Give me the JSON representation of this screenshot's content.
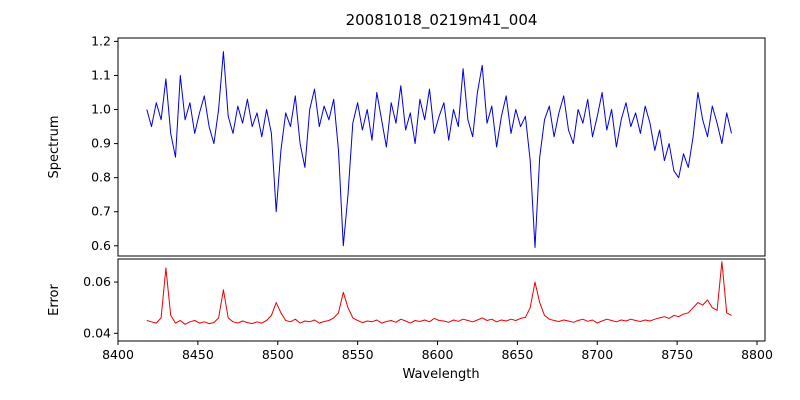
{
  "figure": {
    "background": "#ffffff"
  },
  "chart_data": {
    "type": "line",
    "title": "20081018_0219m41_004",
    "xlabel": "Wavelength",
    "xlim": [
      8400,
      8805
    ],
    "xticks": {
      "values": [
        8400,
        8450,
        8500,
        8550,
        8600,
        8650,
        8700,
        8750,
        8800
      ],
      "labels": [
        "8400",
        "8450",
        "8500",
        "8550",
        "8600",
        "8650",
        "8700",
        "8750",
        "8800"
      ]
    },
    "x": [
      8418,
      8421,
      8424,
      8427,
      8430,
      8433,
      8436,
      8439,
      8442,
      8445,
      8448,
      8451,
      8454,
      8457,
      8460,
      8463,
      8466,
      8469,
      8472,
      8475,
      8478,
      8481,
      8484,
      8487,
      8490,
      8493,
      8496,
      8499,
      8502,
      8505,
      8508,
      8511,
      8514,
      8517,
      8520,
      8523,
      8526,
      8529,
      8532,
      8535,
      8538,
      8541,
      8544,
      8547,
      8550,
      8553,
      8556,
      8559,
      8562,
      8565,
      8568,
      8571,
      8574,
      8577,
      8580,
      8583,
      8586,
      8589,
      8592,
      8595,
      8598,
      8601,
      8604,
      8607,
      8610,
      8613,
      8616,
      8619,
      8622,
      8625,
      8628,
      8631,
      8634,
      8637,
      8640,
      8643,
      8646,
      8649,
      8652,
      8655,
      8658,
      8661,
      8664,
      8667,
      8670,
      8673,
      8676,
      8679,
      8682,
      8685,
      8688,
      8691,
      8694,
      8697,
      8700,
      8703,
      8706,
      8709,
      8712,
      8715,
      8718,
      8721,
      8724,
      8727,
      8730,
      8733,
      8736,
      8739,
      8742,
      8745,
      8748,
      8751,
      8754,
      8757,
      8760,
      8763,
      8766,
      8769,
      8772,
      8775,
      8778,
      8781,
      8784
    ],
    "panels": [
      {
        "name": "spectrum",
        "ylabel": "Spectrum",
        "color": "#0000e6",
        "ylim": [
          0.57,
          1.21
        ],
        "yticks": {
          "values": [
            0.6,
            0.7,
            0.8,
            0.9,
            1.0,
            1.1,
            1.2
          ],
          "labels": [
            "0.6",
            "0.7",
            "0.8",
            "0.9",
            "1.0",
            "1.1",
            "1.2"
          ]
        },
        "values": [
          1.0,
          0.95,
          1.02,
          0.97,
          1.09,
          0.93,
          0.86,
          1.1,
          0.97,
          1.02,
          0.93,
          0.99,
          1.04,
          0.95,
          0.9,
          1.0,
          1.17,
          0.98,
          0.93,
          1.01,
          0.96,
          1.03,
          0.95,
          0.99,
          0.92,
          1.0,
          0.93,
          0.7,
          0.88,
          0.99,
          0.95,
          1.04,
          0.9,
          0.83,
          1.0,
          1.06,
          0.95,
          1.01,
          0.97,
          1.03,
          0.88,
          0.6,
          0.75,
          0.96,
          1.02,
          0.94,
          1.0,
          0.91,
          1.05,
          0.97,
          0.89,
          1.02,
          0.96,
          1.07,
          0.94,
          0.99,
          0.9,
          1.03,
          0.97,
          1.06,
          0.93,
          0.98,
          1.02,
          0.91,
          1.0,
          0.95,
          1.12,
          0.97,
          0.92,
          1.05,
          1.13,
          0.96,
          1.01,
          0.89,
          0.98,
          1.04,
          0.93,
          1.0,
          0.95,
          0.98,
          0.85,
          0.595,
          0.86,
          0.97,
          1.01,
          0.92,
          0.99,
          1.04,
          0.94,
          0.9,
          1.0,
          0.96,
          1.03,
          0.92,
          0.98,
          1.05,
          0.94,
          1.0,
          0.89,
          0.97,
          1.02,
          0.95,
          0.99,
          0.93,
          1.01,
          0.96,
          0.88,
          0.94,
          0.85,
          0.9,
          0.82,
          0.8,
          0.87,
          0.83,
          0.92,
          1.05,
          0.97,
          0.92,
          1.01,
          0.96,
          0.9,
          0.99,
          0.93
        ]
      },
      {
        "name": "error",
        "ylabel": "Error",
        "color": "#ee0000",
        "ylim": [
          0.037,
          0.069
        ],
        "yticks": {
          "values": [
            0.04,
            0.06
          ],
          "labels": [
            "0.04",
            "0.06"
          ]
        },
        "values": [
          0.045,
          0.0445,
          0.044,
          0.046,
          0.0655,
          0.047,
          0.044,
          0.045,
          0.0435,
          0.0445,
          0.045,
          0.044,
          0.0445,
          0.0438,
          0.0442,
          0.046,
          0.057,
          0.046,
          0.0445,
          0.044,
          0.0448,
          0.0442,
          0.0438,
          0.0445,
          0.044,
          0.045,
          0.047,
          0.052,
          0.048,
          0.045,
          0.0445,
          0.0455,
          0.044,
          0.0448,
          0.0445,
          0.0452,
          0.044,
          0.0446,
          0.045,
          0.046,
          0.048,
          0.056,
          0.05,
          0.046,
          0.045,
          0.0442,
          0.0448,
          0.0445,
          0.0452,
          0.044,
          0.0446,
          0.045,
          0.0443,
          0.0455,
          0.0448,
          0.044,
          0.045,
          0.0446,
          0.0452,
          0.0445,
          0.0458,
          0.045,
          0.0448,
          0.0443,
          0.0452,
          0.0447,
          0.0455,
          0.045,
          0.0445,
          0.0452,
          0.046,
          0.045,
          0.0455,
          0.0445,
          0.0452,
          0.0448,
          0.0455,
          0.045,
          0.0458,
          0.0462,
          0.05,
          0.06,
          0.052,
          0.047,
          0.0455,
          0.045,
          0.0446,
          0.0452,
          0.0448,
          0.0443,
          0.045,
          0.0455,
          0.0447,
          0.0452,
          0.044,
          0.0448,
          0.0455,
          0.045,
          0.0445,
          0.0452,
          0.0448,
          0.0455,
          0.045,
          0.0446,
          0.0452,
          0.0448,
          0.0455,
          0.046,
          0.0465,
          0.0458,
          0.047,
          0.0465,
          0.0475,
          0.048,
          0.05,
          0.052,
          0.051,
          0.053,
          0.05,
          0.049,
          0.068,
          0.048,
          0.047
        ]
      }
    ]
  }
}
